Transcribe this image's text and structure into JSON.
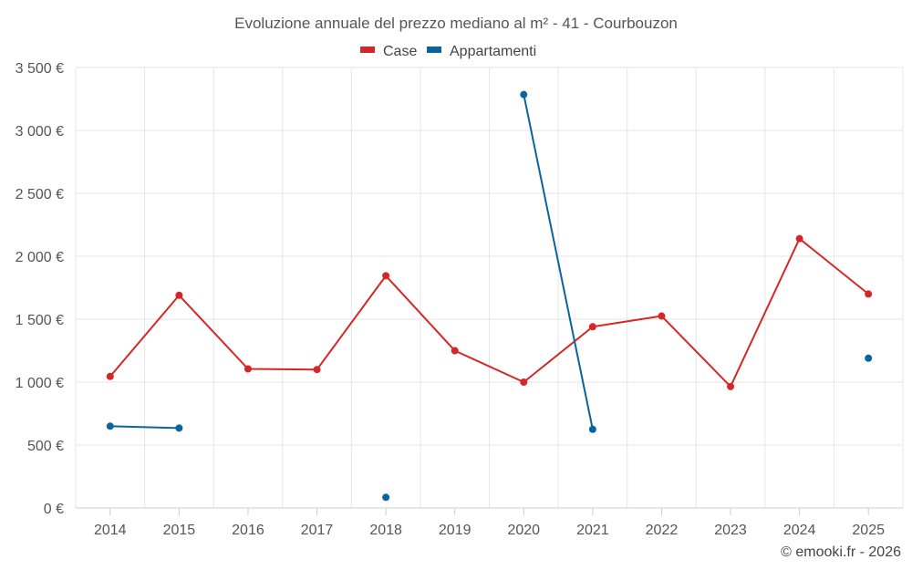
{
  "chart_data": {
    "type": "line",
    "title": "Evoluzione annuale del prezzo mediano al m² - 41 - Courbouzon",
    "categories": [
      "2014",
      "2015",
      "2016",
      "2017",
      "2018",
      "2019",
      "2020",
      "2021",
      "2022",
      "2023",
      "2024",
      "2025"
    ],
    "series": [
      {
        "name": "Case",
        "color": "#d62728",
        "values": [
          1045,
          1690,
          1105,
          1100,
          1845,
          1250,
          1000,
          1440,
          1525,
          965,
          2140,
          1700
        ]
      },
      {
        "name": "Appartamenti",
        "color": "#0a64a0",
        "values": [
          650,
          635,
          null,
          null,
          85,
          null,
          3285,
          625,
          null,
          null,
          null,
          1190
        ]
      }
    ],
    "ylim": [
      0,
      3500
    ],
    "yticks": [
      0,
      500,
      1000,
      1500,
      2000,
      2500,
      3000,
      3500
    ],
    "ytick_labels": [
      "0 €",
      "500 €",
      "1 000 €",
      "1 500 €",
      "2 000 €",
      "2 500 €",
      "3 000 €",
      "3 500 €"
    ],
    "grid": true,
    "legend_position": "top-center",
    "credit": "© emooki.fr - 2026"
  }
}
